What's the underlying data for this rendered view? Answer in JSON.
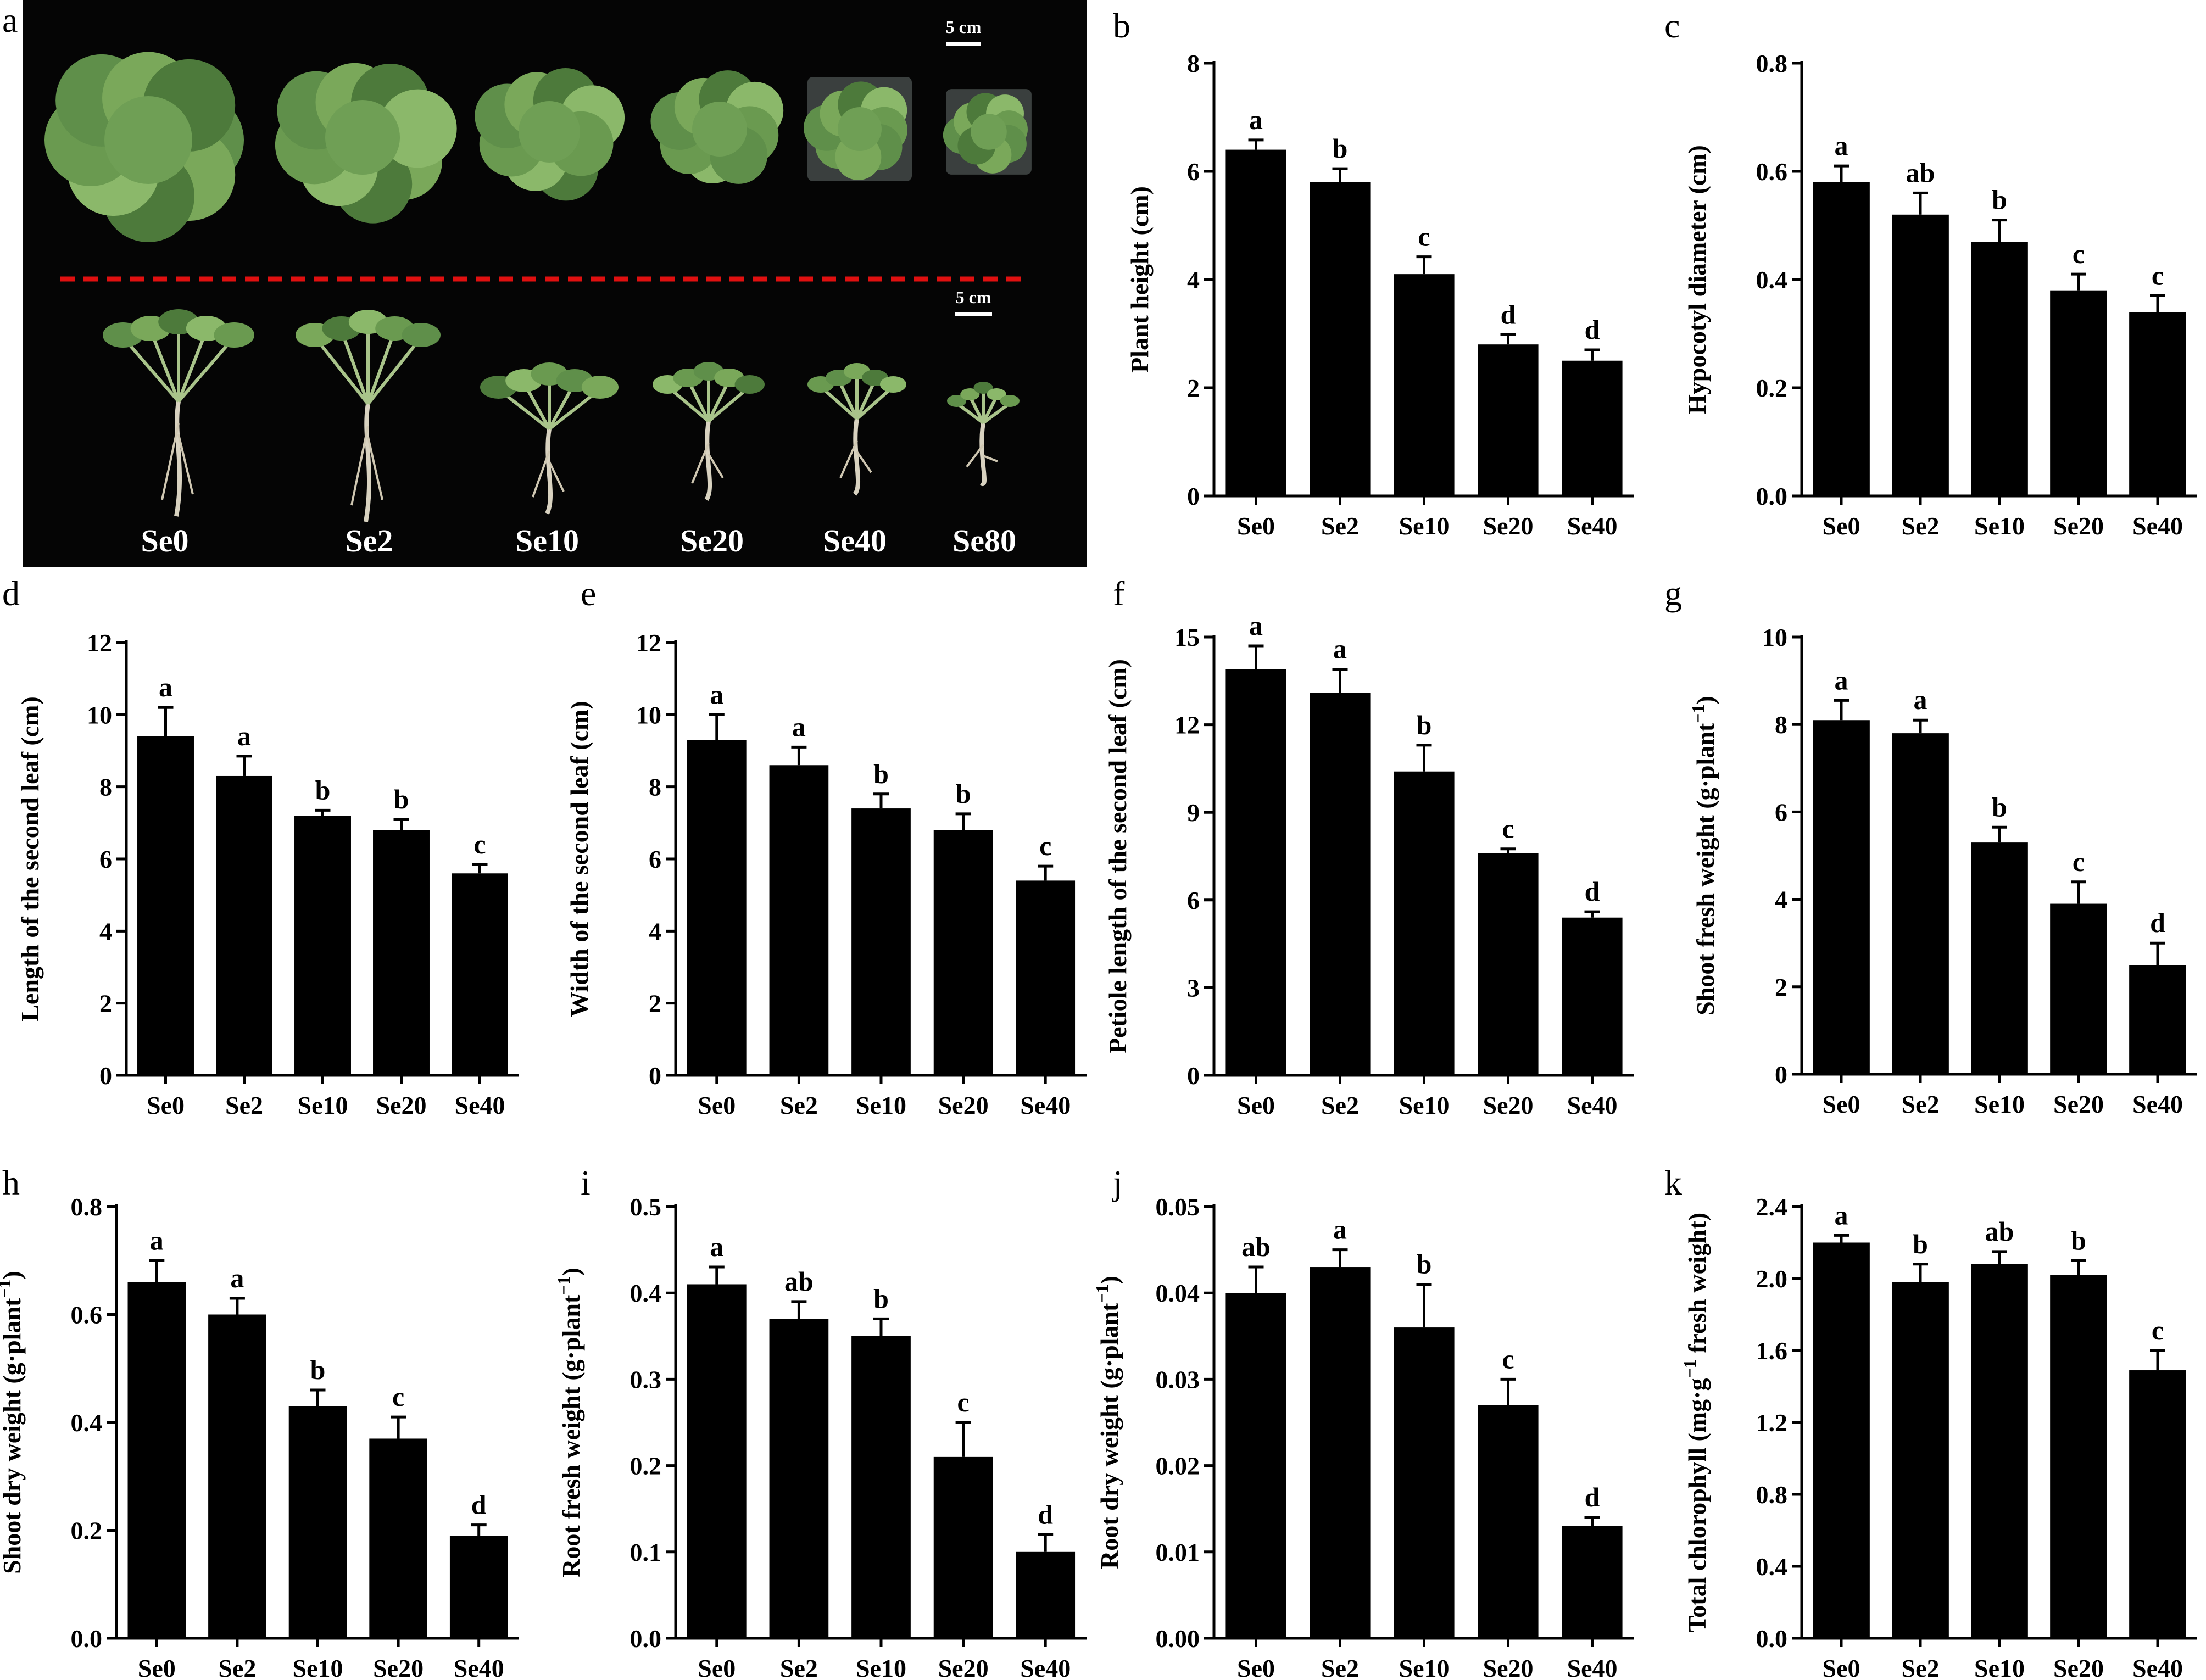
{
  "photo": {
    "letter": "a",
    "scale_top": "5 cm",
    "scale_bottom": "5 cm",
    "labels": [
      "Se0",
      "Se2",
      "Se10",
      "Se20",
      "Se40",
      "Se80"
    ]
  },
  "chart_data": [
    {
      "letter": "b",
      "type": "bar",
      "ylabel": "Plant height (cm)",
      "categories": [
        "Se0",
        "Se2",
        "Se10",
        "Se20",
        "Se40"
      ],
      "values": [
        6.4,
        5.8,
        4.1,
        2.8,
        2.5
      ],
      "errors": [
        0.18,
        0.25,
        0.32,
        0.18,
        0.2
      ],
      "letters": [
        "a",
        "b",
        "c",
        "d",
        "d"
      ],
      "ylim": [
        0,
        8
      ],
      "yticks": [
        "0",
        "2",
        "4",
        "6",
        "8"
      ]
    },
    {
      "letter": "c",
      "type": "bar",
      "ylabel": "Hypocotyl diameter (cm)",
      "categories": [
        "Se0",
        "Se2",
        "Se10",
        "Se20",
        "Se40"
      ],
      "values": [
        0.58,
        0.52,
        0.47,
        0.38,
        0.34
      ],
      "errors": [
        0.03,
        0.04,
        0.04,
        0.03,
        0.03
      ],
      "letters": [
        "a",
        "ab",
        "b",
        "c",
        "c"
      ],
      "ylim": [
        0,
        0.8
      ],
      "yticks": [
        "0.0",
        "0.2",
        "0.4",
        "0.6",
        "0.8"
      ]
    },
    {
      "letter": "d",
      "type": "bar",
      "ylabel": "Length of the second leaf (cm)",
      "categories": [
        "Se0",
        "Se2",
        "Se10",
        "Se20",
        "Se40"
      ],
      "values": [
        9.4,
        8.3,
        7.2,
        6.8,
        5.6
      ],
      "errors": [
        0.8,
        0.55,
        0.15,
        0.3,
        0.25
      ],
      "letters": [
        "a",
        "a",
        "b",
        "b",
        "c"
      ],
      "ylim": [
        0,
        12
      ],
      "yticks": [
        "0",
        "2",
        "4",
        "6",
        "8",
        "10",
        "12"
      ]
    },
    {
      "letter": "e",
      "type": "bar",
      "ylabel": "Width of the second leaf (cm)",
      "categories": [
        "Se0",
        "Se2",
        "Se10",
        "Se20",
        "Se40"
      ],
      "values": [
        9.3,
        8.6,
        7.4,
        6.8,
        5.4
      ],
      "errors": [
        0.7,
        0.5,
        0.4,
        0.45,
        0.4
      ],
      "letters": [
        "a",
        "a",
        "b",
        "b",
        "c"
      ],
      "ylim": [
        0,
        12
      ],
      "yticks": [
        "0",
        "2",
        "4",
        "6",
        "8",
        "10",
        "12"
      ]
    },
    {
      "letter": "f",
      "type": "bar",
      "ylabel": "Petiole length of the second leaf (cm)",
      "categories": [
        "Se0",
        "Se2",
        "Se10",
        "Se20",
        "Se40"
      ],
      "values": [
        13.9,
        13.1,
        10.4,
        7.6,
        5.4
      ],
      "errors": [
        0.8,
        0.8,
        0.9,
        0.15,
        0.2
      ],
      "letters": [
        "a",
        "a",
        "b",
        "c",
        "d"
      ],
      "ylim": [
        0,
        15
      ],
      "yticks": [
        "0",
        "3",
        "6",
        "9",
        "12",
        "15"
      ]
    },
    {
      "letter": "g",
      "type": "bar",
      "ylabel": "Shoot fresh weight (g·plant⁻¹)",
      "categories": [
        "Se0",
        "Se2",
        "Se10",
        "Se20",
        "Se40"
      ],
      "values": [
        8.1,
        7.8,
        5.3,
        3.9,
        2.5
      ],
      "errors": [
        0.45,
        0.3,
        0.35,
        0.5,
        0.5
      ],
      "letters": [
        "a",
        "a",
        "b",
        "c",
        "d"
      ],
      "ylim": [
        0,
        10
      ],
      "yticks": [
        "0",
        "2",
        "4",
        "6",
        "8",
        "10"
      ]
    },
    {
      "letter": "h",
      "type": "bar",
      "ylabel": "Shoot dry weight (g·plant⁻¹)",
      "categories": [
        "Se0",
        "Se2",
        "Se10",
        "Se20",
        "Se40"
      ],
      "values": [
        0.66,
        0.6,
        0.43,
        0.37,
        0.19
      ],
      "errors": [
        0.04,
        0.03,
        0.03,
        0.04,
        0.02
      ],
      "letters": [
        "a",
        "a",
        "b",
        "c",
        "d"
      ],
      "ylim": [
        0,
        0.8
      ],
      "yticks": [
        "0.0",
        "0.2",
        "0.4",
        "0.6",
        "0.8"
      ]
    },
    {
      "letter": "i",
      "type": "bar",
      "ylabel": "Root fresh weight (g·plant⁻¹)",
      "categories": [
        "Se0",
        "Se2",
        "Se10",
        "Se20",
        "Se40"
      ],
      "values": [
        0.41,
        0.37,
        0.35,
        0.21,
        0.1
      ],
      "errors": [
        0.02,
        0.02,
        0.02,
        0.04,
        0.02
      ],
      "letters": [
        "a",
        "ab",
        "b",
        "c",
        "d"
      ],
      "ylim": [
        0,
        0.5
      ],
      "yticks": [
        "0.0",
        "0.1",
        "0.2",
        "0.3",
        "0.4",
        "0.5"
      ]
    },
    {
      "letter": "j",
      "type": "bar",
      "ylabel": "Root dry weight (g·plant⁻¹)",
      "categories": [
        "Se0",
        "Se2",
        "Se10",
        "Se20",
        "Se40"
      ],
      "values": [
        0.04,
        0.043,
        0.036,
        0.027,
        0.013
      ],
      "errors": [
        0.003,
        0.002,
        0.005,
        0.003,
        0.001
      ],
      "letters": [
        "ab",
        "a",
        "b",
        "c",
        "d"
      ],
      "ylim": [
        0,
        0.05
      ],
      "yticks": [
        "0.00",
        "0.01",
        "0.02",
        "0.03",
        "0.04",
        "0.05"
      ]
    },
    {
      "letter": "k",
      "type": "bar",
      "ylabel": "Total chlorophyll (mg·g⁻¹ fresh weight)",
      "categories": [
        "Se0",
        "Se2",
        "Se10",
        "Se20",
        "Se40"
      ],
      "values": [
        2.2,
        1.98,
        2.08,
        2.02,
        1.49
      ],
      "errors": [
        0.04,
        0.1,
        0.07,
        0.08,
        0.11
      ],
      "letters": [
        "a",
        "b",
        "ab",
        "b",
        "c"
      ],
      "ylim": [
        0,
        2.4
      ],
      "yticks": [
        "0.0",
        "0.4",
        "0.8",
        "1.2",
        "1.6",
        "2.0",
        "2.4"
      ]
    }
  ]
}
